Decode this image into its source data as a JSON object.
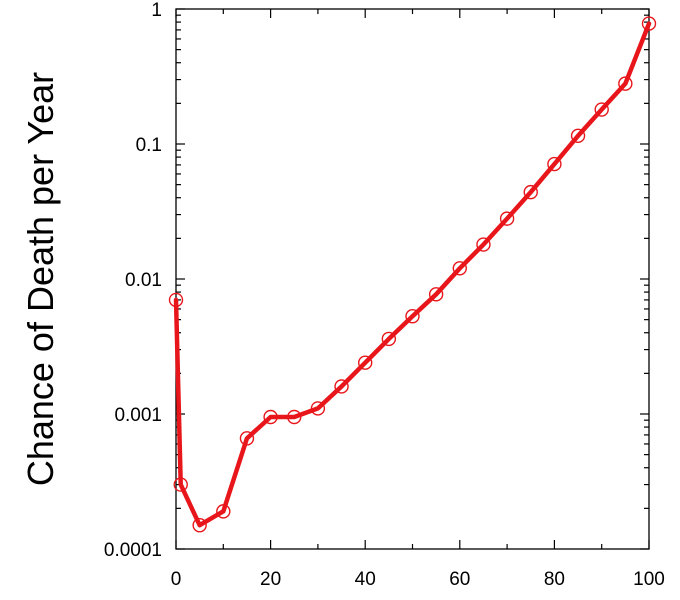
{
  "chart_data": {
    "type": "line",
    "title": "",
    "xlabel": "",
    "ylabel": "Chance of Death per Year",
    "xlim": [
      0,
      100
    ],
    "ylim": [
      0.0001,
      1
    ],
    "yscale": "log",
    "grid": false,
    "x_ticks": [
      {
        "value": 0,
        "label": "0"
      },
      {
        "value": 20,
        "label": "20"
      },
      {
        "value": 40,
        "label": "40"
      },
      {
        "value": 60,
        "label": "60"
      },
      {
        "value": 80,
        "label": "80"
      },
      {
        "value": 100,
        "label": "100"
      }
    ],
    "y_ticks": [
      {
        "value": 0.0001,
        "label": "0.0001"
      },
      {
        "value": 0.001,
        "label": "0.001"
      },
      {
        "value": 0.01,
        "label": "0.01"
      },
      {
        "value": 0.1,
        "label": "0.1"
      },
      {
        "value": 1,
        "label": "1"
      }
    ],
    "series": [
      {
        "color": "#e8161b",
        "marker": "open-circle",
        "x": [
          0,
          1,
          5,
          10,
          15,
          20,
          25,
          30,
          35,
          40,
          45,
          50,
          55,
          60,
          65,
          70,
          75,
          80,
          85,
          90,
          95,
          100
        ],
        "y": [
          0.007,
          0.0003,
          0.00015,
          0.00019,
          0.00066,
          0.00095,
          0.00095,
          0.0011,
          0.0016,
          0.0024,
          0.0036,
          0.0053,
          0.0077,
          0.012,
          0.018,
          0.028,
          0.044,
          0.071,
          0.115,
          0.18,
          0.28,
          0.78
        ]
      }
    ]
  }
}
